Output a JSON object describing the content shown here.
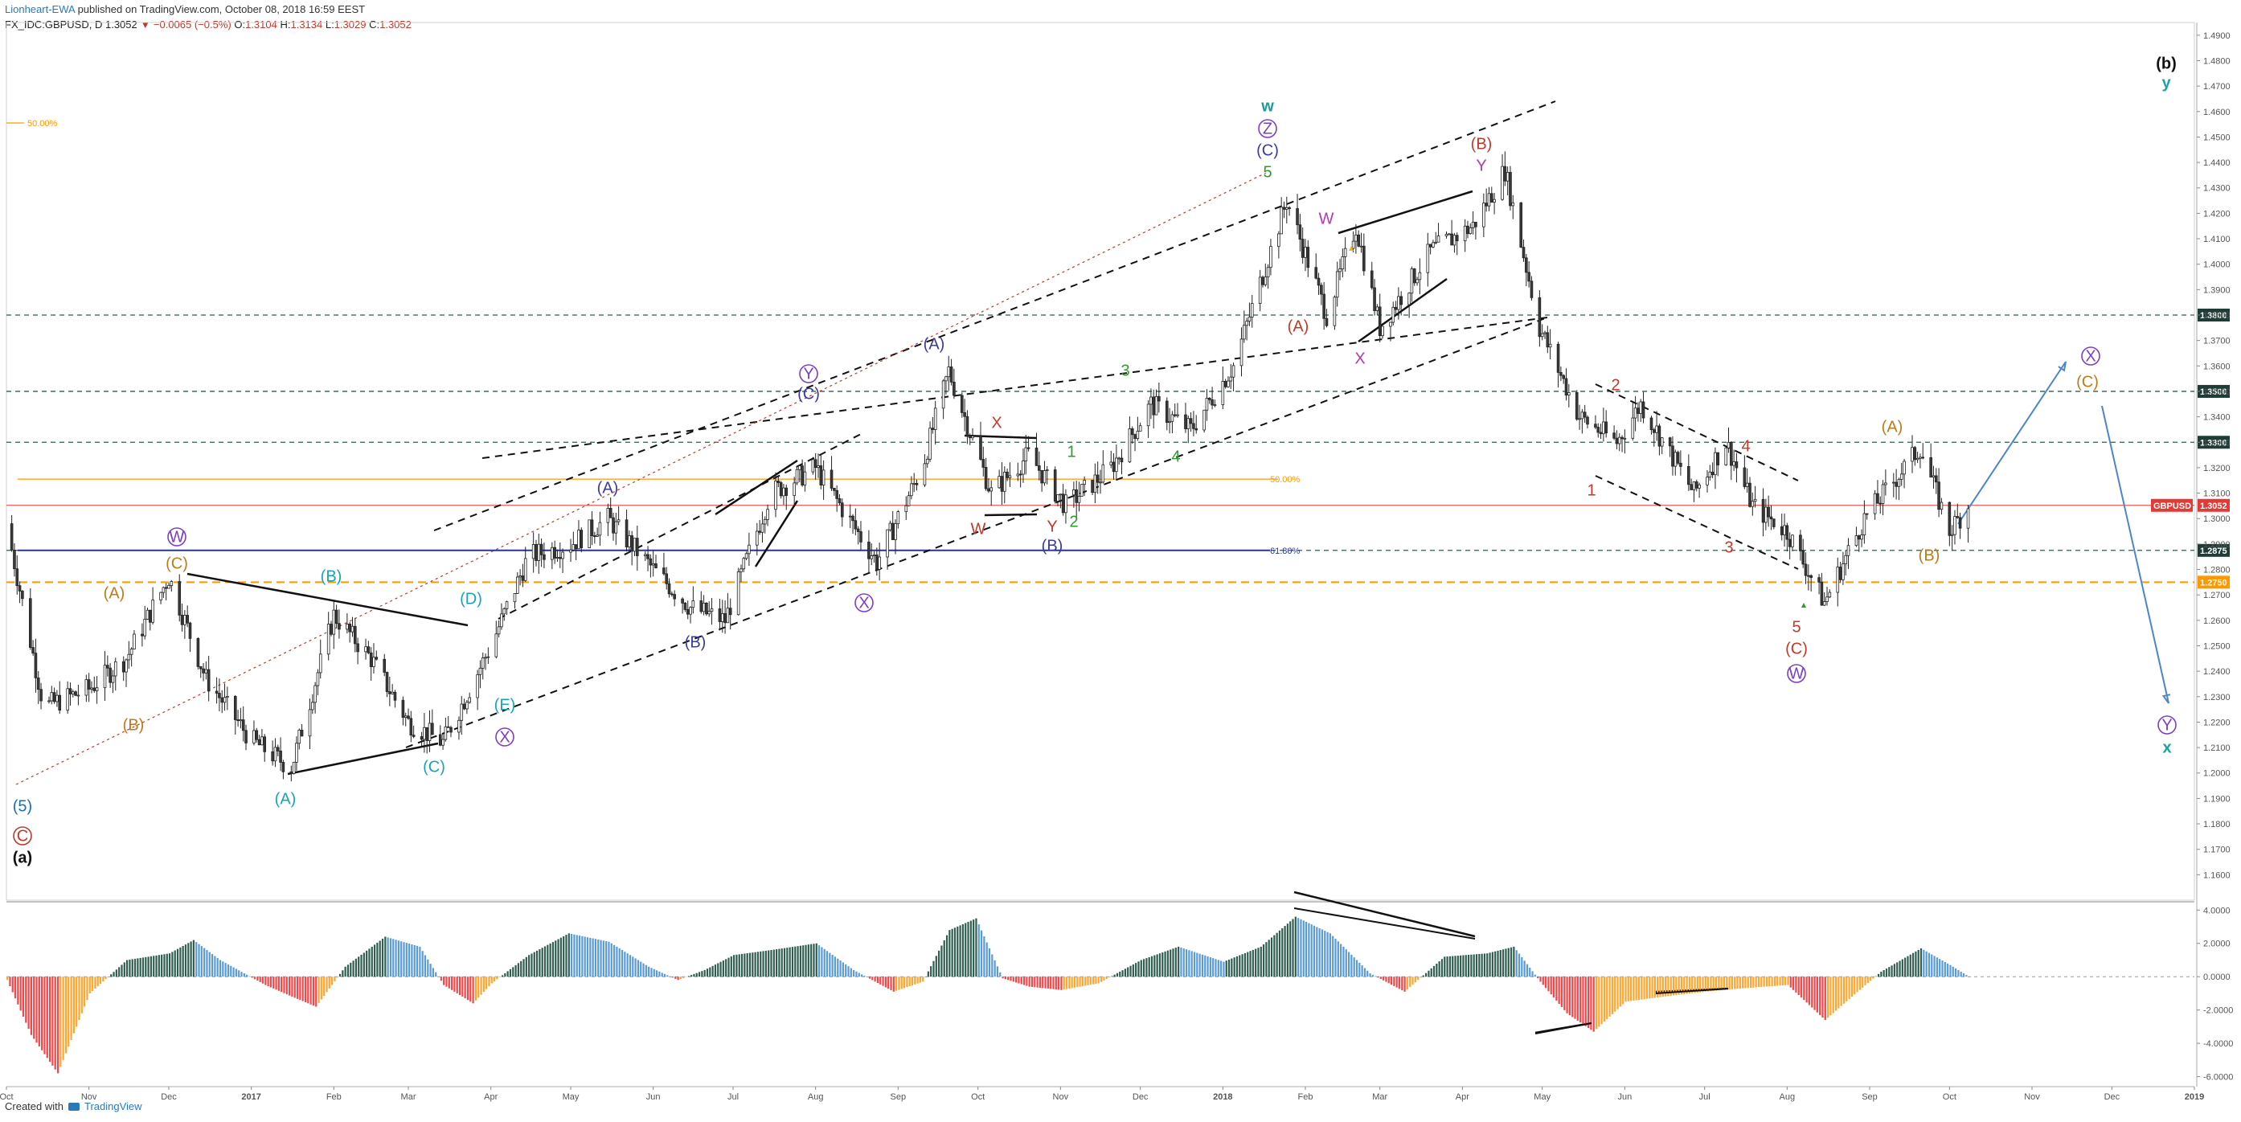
{
  "header": {
    "author": "Lionheart-EWA",
    "published": " published on TradingView.com, October 08, 2018 16:59 EEST",
    "symbol": "FX_IDC:GBPUSD, D",
    "last": "1.3052",
    "change": "−0.0065 (−0.5%)",
    "o_label": "O:",
    "o": "1.3104",
    "h_label": "H:",
    "h": "1.3134",
    "l_label": "L:",
    "l": "1.3029",
    "c_label": "C:",
    "c": "1.3052"
  },
  "footer": {
    "created_with": "Created with",
    "brand": "TradingView"
  },
  "colors": {
    "bull_candle": "#3a3a3a",
    "hist_dark": "#2f5d50",
    "hist_light": "#5b9bd5",
    "hist_red": "#f0474a",
    "hist_orange": "#ffa630",
    "grid_dash": "#2f5d50",
    "fib_orange": "#ff9800",
    "fib_blue": "#283593",
    "last_price": "#e53935",
    "projection": "#4a86c8"
  },
  "chart_data": [
    {
      "type": "candlestick",
      "symbol": "GBPUSD",
      "timeframe": "D",
      "x": [
        "2016-10-01",
        "2016-10-15",
        "2016-11-01",
        "2016-11-15",
        "2016-12-01",
        "2016-12-15",
        "2017-01-01",
        "2017-01-16",
        "2017-02-01",
        "2017-02-15",
        "2017-03-01",
        "2017-03-14",
        "2017-04-01",
        "2017-04-15",
        "2017-05-01",
        "2017-05-15",
        "2017-06-01",
        "2017-06-15",
        "2017-06-28",
        "2017-07-15",
        "2017-08-01",
        "2017-08-24",
        "2017-09-10",
        "2017-09-20",
        "2017-10-06",
        "2017-10-20",
        "2017-11-03",
        "2017-11-20",
        "2017-12-05",
        "2017-12-20",
        "2018-01-05",
        "2018-01-25",
        "2018-02-09",
        "2018-02-20",
        "2018-03-01",
        "2018-03-20",
        "2018-04-05",
        "2018-04-17",
        "2018-04-30",
        "2018-05-15",
        "2018-05-29",
        "2018-06-07",
        "2018-06-27",
        "2018-07-09",
        "2018-07-19",
        "2018-08-01",
        "2018-08-15",
        "2018-08-30",
        "2018-09-20",
        "2018-10-01",
        "2018-10-08"
      ],
      "y": [
        1.298,
        1.226,
        1.233,
        1.245,
        1.277,
        1.237,
        1.213,
        1.202,
        1.262,
        1.245,
        1.22,
        1.212,
        1.25,
        1.285,
        1.29,
        1.3,
        1.28,
        1.265,
        1.26,
        1.31,
        1.32,
        1.283,
        1.32,
        1.358,
        1.31,
        1.325,
        1.305,
        1.32,
        1.345,
        1.335,
        1.36,
        1.425,
        1.38,
        1.415,
        1.375,
        1.405,
        1.415,
        1.437,
        1.375,
        1.34,
        1.33,
        1.345,
        1.31,
        1.33,
        1.305,
        1.295,
        1.267,
        1.3,
        1.328,
        1.295,
        1.305
      ],
      "price_range": [
        1.15,
        1.495
      ],
      "y_ticks": [
        "1.4900",
        "1.4800",
        "1.4700",
        "1.4600",
        "1.4500",
        "1.4400",
        "1.4300",
        "1.4200",
        "1.4100",
        "1.4000",
        "1.3900",
        "1.3800",
        "1.3700",
        "1.3600",
        "1.3500",
        "1.3400",
        "1.3300",
        "1.3200",
        "1.3100",
        "1.3000",
        "1.2900",
        "1.2800",
        "1.2700",
        "1.2600",
        "1.2500",
        "1.2400",
        "1.2300",
        "1.2200",
        "1.2100",
        "1.2000",
        "1.1900",
        "1.1800",
        "1.1700",
        "1.1600"
      ],
      "x_ticks": [
        "Oct",
        "Nov",
        "Dec",
        "2017",
        "Feb",
        "Mar",
        "Apr",
        "May",
        "Jun",
        "Jul",
        "Aug",
        "Sep",
        "Oct",
        "Nov",
        "Dec",
        "2018",
        "Feb",
        "Mar",
        "Apr",
        "May",
        "Jun",
        "Jul",
        "Aug",
        "Sep",
        "Oct",
        "Nov",
        "Dec",
        "2019"
      ],
      "horizontal_levels": [
        {
          "price": 1.38,
          "label": "1.3800"
        },
        {
          "price": 1.35,
          "label": "1.3500"
        },
        {
          "price": 1.33,
          "label": "1.3300"
        },
        {
          "price": 1.2875,
          "label": "1.2875"
        },
        {
          "price": 1.275,
          "label": "1.2750"
        }
      ],
      "last_price": {
        "price": 1.3052,
        "label": "GBPUSD",
        "value": "1.3052"
      },
      "fib_levels": [
        {
          "price": 1.3155,
          "label": "50.00%"
        },
        {
          "price": 1.2875,
          "label": "61.80%"
        },
        {
          "price": 1.4555,
          "label": "50.00%"
        }
      ],
      "wave_labels": [
        {
          "text": "(b)",
          "color": "#111111"
        },
        {
          "text": "y",
          "color": "#1aa3a3"
        },
        {
          "text": "w",
          "color": "#1a9b9b"
        },
        {
          "text": "Z",
          "color": "#7b3fc4",
          "circled": true
        },
        {
          "text": "(C)",
          "color": "#3b3b9b"
        },
        {
          "text": "5",
          "color": "#2e9b2e"
        },
        {
          "text": "(B)",
          "color": "#c0392b"
        },
        {
          "text": "Y",
          "color": "#b03ab0"
        },
        {
          "text": "W",
          "color": "#b03ab0"
        },
        {
          "text": "(A)",
          "color": "#c0392b"
        },
        {
          "text": "X",
          "color": "#b03ab0"
        },
        {
          "text": "(A)",
          "color": "#3b3b9b"
        },
        {
          "text": "3",
          "color": "#2e9b2e"
        },
        {
          "text": "X",
          "color": "#c0392b"
        },
        {
          "text": "1",
          "color": "#2e9b2e"
        },
        {
          "text": "4",
          "color": "#2e9b2e"
        },
        {
          "text": "W",
          "color": "#c0392b"
        },
        {
          "text": "Y",
          "color": "#c0392b"
        },
        {
          "text": "2",
          "color": "#2e9b2e"
        },
        {
          "text": "(B)",
          "color": "#3b3b9b"
        },
        {
          "text": "Y",
          "color": "#7b3fc4",
          "circled": true
        },
        {
          "text": "(C)",
          "color": "#3b3b9b"
        },
        {
          "text": "X",
          "color": "#7b3fc4",
          "circled": true
        },
        {
          "text": "(A)",
          "color": "#3b3b9b"
        },
        {
          "text": "(B)",
          "color": "#3b3b9b"
        },
        {
          "text": "(D)",
          "color": "#1aa3b8"
        },
        {
          "text": "(E)",
          "color": "#1aa3b8"
        },
        {
          "text": "X",
          "color": "#7b3fc4",
          "circled": true
        },
        {
          "text": "(B)",
          "color": "#1aa3b8"
        },
        {
          "text": "(C)",
          "color": "#1aa3b8"
        },
        {
          "text": "(A)",
          "color": "#1aa3b8"
        },
        {
          "text": "W",
          "color": "#7b3fc4",
          "circled": true
        },
        {
          "text": "(C)",
          "color": "#c07a1a"
        },
        {
          "text": "(A)",
          "color": "#c07a1a"
        },
        {
          "text": "(B)",
          "color": "#c07a1a"
        },
        {
          "text": "(5)",
          "color": "#1a6fb8"
        },
        {
          "text": "C",
          "color": "#c0392b",
          "circled": true
        },
        {
          "text": "(a)",
          "color": "#111111"
        },
        {
          "text": "2",
          "color": "#c0392b"
        },
        {
          "text": "1",
          "color": "#c0392b"
        },
        {
          "text": "4",
          "color": "#c0392b"
        },
        {
          "text": "3",
          "color": "#c0392b"
        },
        {
          "text": "5",
          "color": "#c0392b"
        },
        {
          "text": "(C)",
          "color": "#c0392b"
        },
        {
          "text": "W",
          "color": "#7b3fc4",
          "circled": true
        },
        {
          "text": "(A)",
          "color": "#c07a1a"
        },
        {
          "text": "(B)",
          "color": "#c07a1a"
        },
        {
          "text": "X",
          "color": "#7b3fc4",
          "circled": true
        },
        {
          "text": "(C)",
          "color": "#c07a1a"
        },
        {
          "text": "Y",
          "color": "#7b3fc4",
          "circled": true
        },
        {
          "text": "x",
          "color": "#1aa3a3"
        }
      ]
    },
    {
      "type": "area",
      "name": "oscillator",
      "y_ticks": [
        "4.0000",
        "2.0000",
        "0.0000",
        "-2.0000",
        "-4.0000",
        "-6.0000"
      ],
      "y_range": [
        -6.6,
        4.4
      ],
      "x": [
        "2016-10-01",
        "2016-10-10",
        "2016-10-20",
        "2016-11-01",
        "2016-11-15",
        "2016-12-01",
        "2016-12-10",
        "2016-12-20",
        "2017-01-06",
        "2017-01-16",
        "2017-01-25",
        "2017-02-05",
        "2017-02-20",
        "2017-03-05",
        "2017-03-14",
        "2017-03-25",
        "2017-04-01",
        "2017-04-15",
        "2017-04-30",
        "2017-05-15",
        "2017-05-30",
        "2017-06-10",
        "2017-06-20",
        "2017-07-01",
        "2017-07-15",
        "2017-08-01",
        "2017-08-15",
        "2017-08-30",
        "2017-09-10",
        "2017-09-20",
        "2017-09-30",
        "2017-10-10",
        "2017-10-20",
        "2017-11-01",
        "2017-11-15",
        "2017-12-01",
        "2017-12-15",
        "2018-01-01",
        "2018-01-15",
        "2018-01-28",
        "2018-02-10",
        "2018-02-25",
        "2018-03-10",
        "2018-03-25",
        "2018-04-10",
        "2018-04-20",
        "2018-04-30",
        "2018-05-10",
        "2018-05-20",
        "2018-06-01",
        "2018-06-15",
        "2018-07-01",
        "2018-07-15",
        "2018-08-01",
        "2018-08-15",
        "2018-08-25",
        "2018-09-05",
        "2018-09-20",
        "2018-10-01",
        "2018-10-08"
      ],
      "values": [
        -0.2,
        -3.5,
        -5.8,
        -1.0,
        1.0,
        1.4,
        2.2,
        1.0,
        -0.5,
        -1.2,
        -1.8,
        0.6,
        2.4,
        1.8,
        -0.5,
        -1.6,
        -0.4,
        1.3,
        2.6,
        2.1,
        0.6,
        -0.2,
        0.4,
        1.3,
        1.6,
        2.0,
        0.4,
        -0.9,
        -0.3,
        2.8,
        3.5,
        -0.1,
        -0.6,
        -0.8,
        -0.4,
        1.0,
        1.8,
        0.9,
        1.8,
        3.6,
        2.6,
        0.2,
        -0.9,
        1.2,
        1.4,
        1.8,
        -0.3,
        -2.2,
        -3.3,
        -1.5,
        -1.2,
        -0.9,
        -0.7,
        -0.5,
        -2.6,
        -1.2,
        0.3,
        1.7,
        0.7,
        0.0
      ]
    }
  ]
}
